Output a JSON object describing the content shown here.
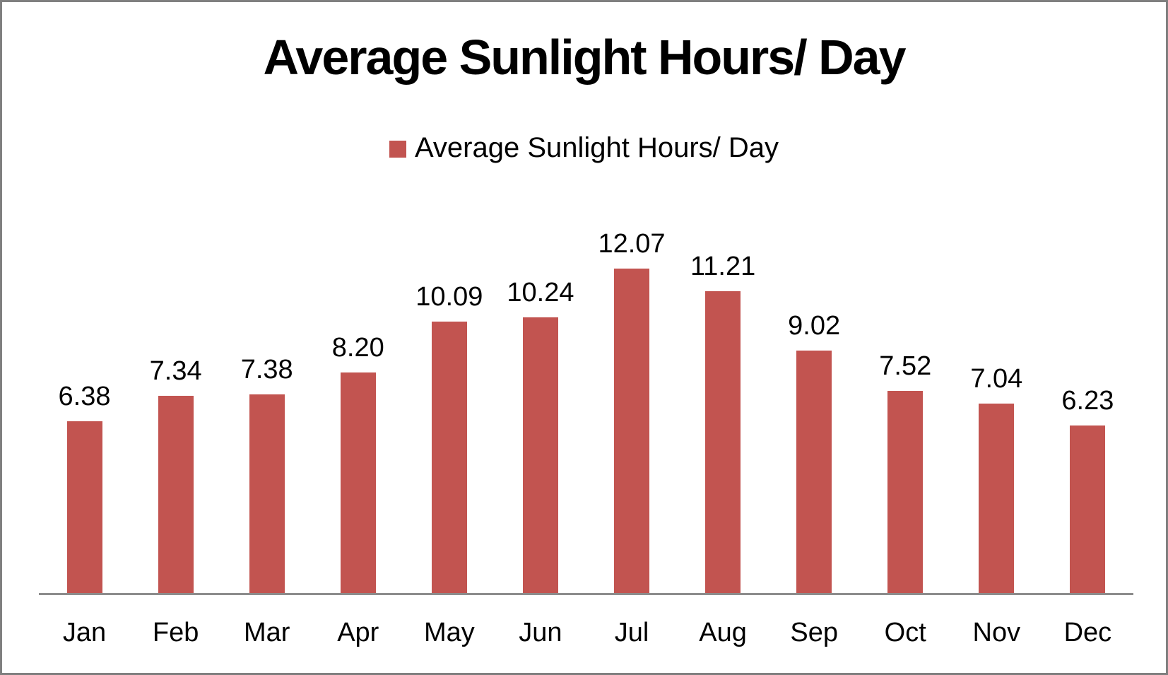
{
  "window": {
    "background_color": "#FFFFFF",
    "frame_border_color": "#7F7F7F"
  },
  "chart_data": {
    "type": "bar",
    "title": "Average Sunlight Hours/ Day",
    "legend": {
      "label": "Average Sunlight Hours/ Day",
      "marker_color": "#C25450",
      "position": "top-center"
    },
    "categories": [
      "Jan",
      "Feb",
      "Mar",
      "Apr",
      "May",
      "Jun",
      "Jul",
      "Aug",
      "Sep",
      "Oct",
      "Nov",
      "Dec"
    ],
    "values": [
      6.38,
      7.34,
      7.38,
      8.2,
      10.09,
      10.24,
      12.07,
      11.21,
      9.02,
      7.52,
      7.04,
      6.23
    ],
    "value_labels": [
      "6.38",
      "7.34",
      "7.38",
      "8.20",
      "10.09",
      "10.24",
      "12.07",
      "11.21",
      "9.02",
      "7.52",
      "7.04",
      "6.23"
    ],
    "series_name": "Average Sunlight Hours/ Day",
    "bar_color": "#C25450",
    "axis_line_color": "#8C8C8C",
    "label_color": "#000000",
    "xlabel": "",
    "ylabel": "",
    "ylim": [
      0,
      14.35
    ],
    "grid": false,
    "data_labels_shown": true,
    "y_axis_shown": false
  }
}
